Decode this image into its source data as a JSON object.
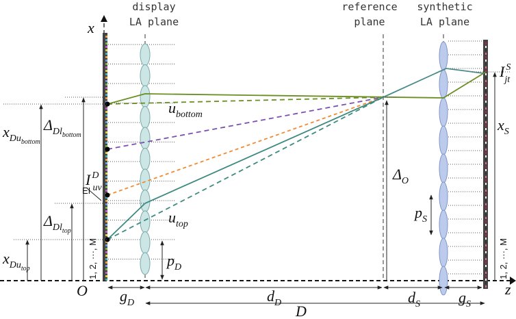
{
  "planes": {
    "display": [
      "display",
      "LA plane"
    ],
    "reference": [
      "reference",
      "plane"
    ],
    "synthetic": [
      "synthetic",
      "LA plane"
    ]
  },
  "labels": {
    "x": {
      "main": "x"
    },
    "O": {
      "main": "O"
    },
    "z": {
      "main": "z"
    },
    "g_D": {
      "main": "g",
      "sub": "D"
    },
    "d_D": {
      "main": "d",
      "sub": "D"
    },
    "d_S": {
      "main": "d",
      "sub": "S"
    },
    "g_S": {
      "main": "g",
      "sub": "S"
    },
    "D": {
      "main": "D"
    },
    "u_bottom": {
      "main": "u",
      "sub": "bottom"
    },
    "u_top": {
      "main": "u",
      "sub": "top"
    },
    "I_uv_D": {
      "main": "I",
      "sup": "D",
      "sub": "uv"
    },
    "delta_Dl_bottom": {
      "main": "Δ",
      "sub": "Dl",
      "sub2": "bottom"
    },
    "x_Du_bottom": {
      "main": "x",
      "sub": "Du",
      "sub2": "bottom"
    },
    "delta_Dl_top": {
      "main": "Δ",
      "sub": "Dl",
      "sub2": "top"
    },
    "x_Du_top": {
      "main": "x",
      "sub": "Du",
      "sub2": "top"
    },
    "p_D": {
      "main": "p",
      "sub": "D"
    },
    "p_S": {
      "main": "p",
      "sub": "S"
    },
    "delta_O": {
      "main": "Δ",
      "sub": "O"
    },
    "x_S": {
      "main": "x",
      "sub": "S"
    },
    "I_jt_S": {
      "main": "I",
      "sup": "S",
      "sub": "jt"
    }
  },
  "EI": "EI",
  "index_left": "1, 2, ···, M",
  "index_right": "1, 2, ···, M"
}
